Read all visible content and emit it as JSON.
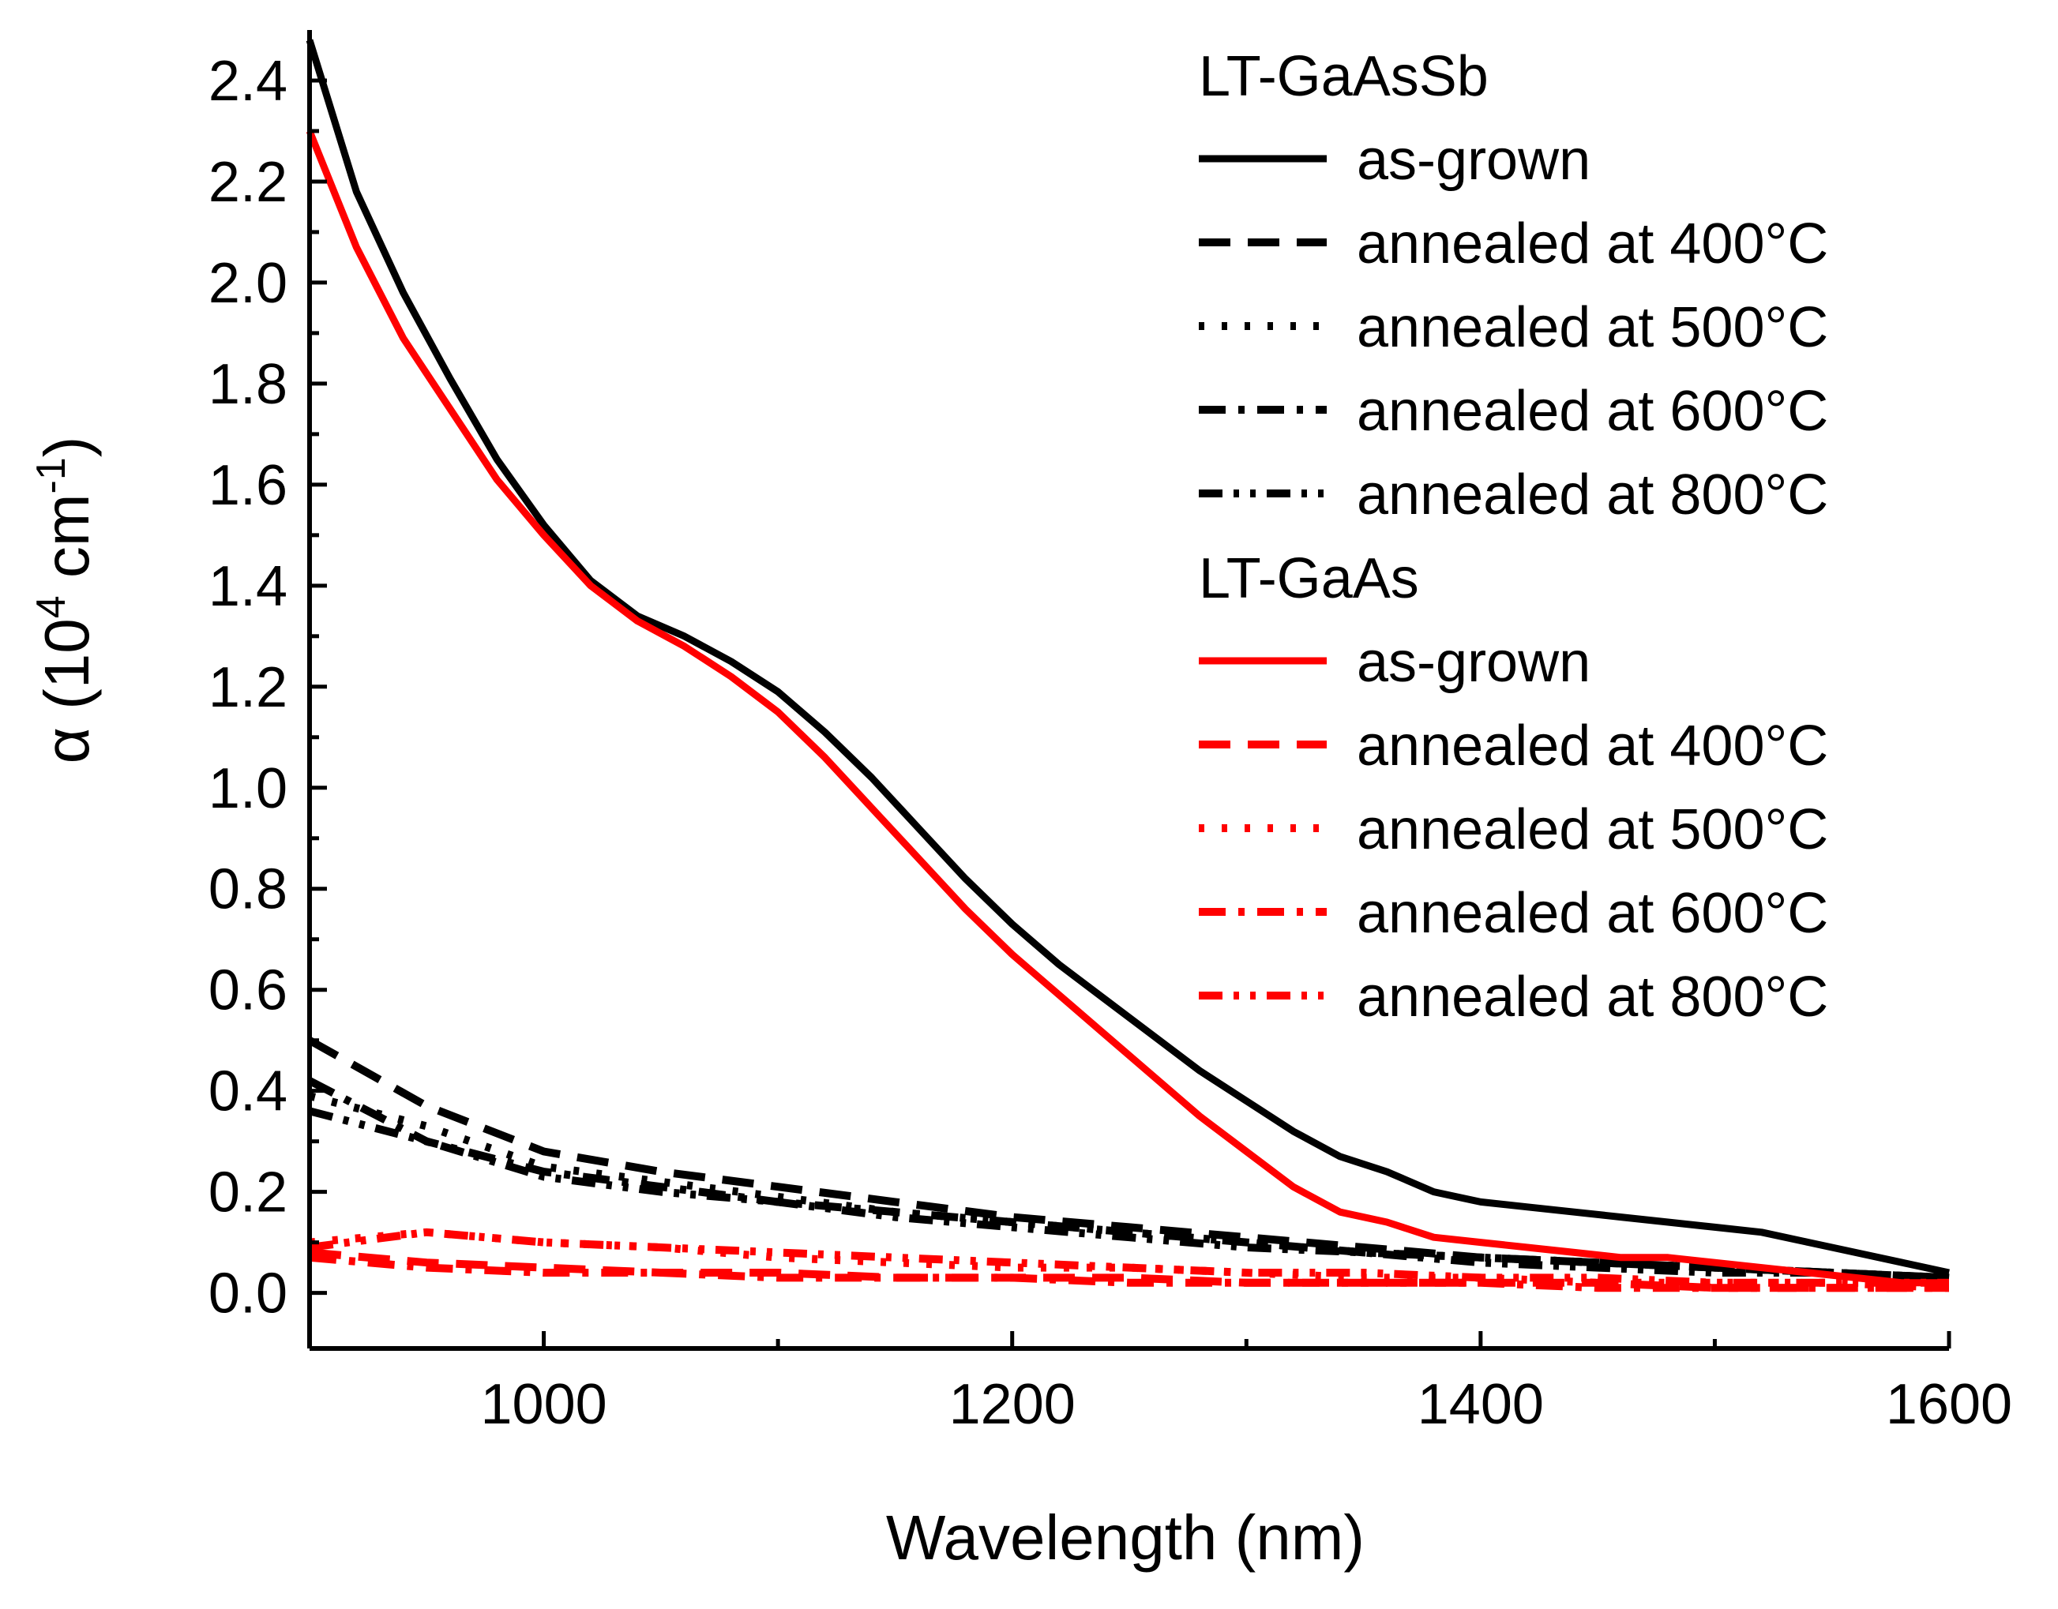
{
  "chart_data": {
    "type": "line",
    "xlabel": "Wavelength (nm)",
    "ylabel": {
      "prefix": "α (10",
      "exp1": "4",
      "mid": " cm",
      "exp2": "-1",
      "suffix": ")"
    },
    "xlim": [
      900,
      1600
    ],
    "ylim": [
      -0.11,
      2.5
    ],
    "x_ticks": [
      1000,
      1200,
      1400,
      1600
    ],
    "x_tick_labels": [
      "1000",
      "1200",
      "1400",
      "1600"
    ],
    "y_ticks": [
      0.0,
      0.2,
      0.4,
      0.6,
      0.8,
      1.0,
      1.2,
      1.4,
      1.6,
      1.8,
      2.0,
      2.2,
      2.4
    ],
    "y_tick_labels": [
      "0.0",
      "0.2",
      "0.4",
      "0.6",
      "0.8",
      "1.0",
      "1.2",
      "1.4",
      "1.6",
      "1.8",
      "2.0",
      "2.2",
      "2.4"
    ],
    "grid": false,
    "legend_position": "top-right",
    "groups": [
      {
        "title": "LT-GaAsSb",
        "color": "#000000",
        "series": [
          {
            "name": "as-grown",
            "style": "solid",
            "x": [
              900,
              920,
              940,
              960,
              980,
              1000,
              1020,
              1040,
              1060,
              1080,
              1100,
              1120,
              1140,
              1160,
              1180,
              1200,
              1220,
              1240,
              1260,
              1280,
              1300,
              1320,
              1340,
              1360,
              1380,
              1400,
              1420,
              1440,
              1460,
              1480,
              1500,
              1520,
              1540,
              1560,
              1580,
              1600
            ],
            "y": [
              2.48,
              2.18,
              1.98,
              1.81,
              1.65,
              1.52,
              1.41,
              1.34,
              1.3,
              1.25,
              1.19,
              1.11,
              1.02,
              0.92,
              0.82,
              0.73,
              0.65,
              0.58,
              0.51,
              0.44,
              0.38,
              0.32,
              0.27,
              0.24,
              0.2,
              0.18,
              0.17,
              0.16,
              0.15,
              0.14,
              0.13,
              0.12,
              0.1,
              0.08,
              0.06,
              0.04
            ]
          },
          {
            "name": "annealed at 400°C",
            "style": "dash",
            "x": [
              900,
              950,
              1000,
              1050,
              1100,
              1150,
              1200,
              1250,
              1300,
              1350,
              1400,
              1450,
              1500,
              1550,
              1600
            ],
            "y": [
              0.5,
              0.37,
              0.28,
              0.24,
              0.21,
              0.18,
              0.15,
              0.13,
              0.11,
              0.09,
              0.07,
              0.06,
              0.05,
              0.04,
              0.03
            ]
          },
          {
            "name": "annealed at 500°C",
            "style": "dot",
            "x": [
              900,
              950,
              1000,
              1050,
              1100,
              1150,
              1200,
              1250,
              1300,
              1350,
              1400,
              1450,
              1500,
              1550,
              1600
            ],
            "y": [
              0.39,
              0.33,
              0.25,
              0.22,
              0.19,
              0.16,
              0.14,
              0.12,
              0.1,
              0.08,
              0.07,
              0.06,
              0.05,
              0.04,
              0.03
            ]
          },
          {
            "name": "annealed at 600°C",
            "style": "dashdot",
            "x": [
              900,
              950,
              1000,
              1050,
              1100,
              1150,
              1200,
              1250,
              1300,
              1350,
              1400,
              1450,
              1500,
              1550,
              1600
            ],
            "y": [
              0.42,
              0.3,
              0.24,
              0.21,
              0.18,
              0.16,
              0.14,
              0.12,
              0.1,
              0.08,
              0.07,
              0.06,
              0.05,
              0.04,
              0.03
            ]
          },
          {
            "name": "annealed at 800°C",
            "style": "dashdotdot",
            "x": [
              900,
              950,
              1000,
              1050,
              1100,
              1150,
              1200,
              1250,
              1300,
              1350,
              1400,
              1450,
              1500,
              1550,
              1600
            ],
            "y": [
              0.36,
              0.3,
              0.23,
              0.2,
              0.18,
              0.15,
              0.13,
              0.11,
              0.09,
              0.08,
              0.06,
              0.05,
              0.04,
              0.04,
              0.03
            ]
          }
        ]
      },
      {
        "title": "LT-GaAs",
        "color": "#ff0000",
        "series": [
          {
            "name": "as-grown",
            "style": "solid",
            "x": [
              900,
              920,
              940,
              960,
              980,
              1000,
              1020,
              1040,
              1060,
              1080,
              1100,
              1120,
              1140,
              1160,
              1180,
              1200,
              1220,
              1240,
              1260,
              1280,
              1300,
              1320,
              1340,
              1360,
              1380,
              1400,
              1420,
              1440,
              1460,
              1480,
              1500,
              1520,
              1540,
              1560,
              1580,
              1600
            ],
            "y": [
              2.3,
              2.07,
              1.89,
              1.75,
              1.61,
              1.5,
              1.4,
              1.33,
              1.28,
              1.22,
              1.15,
              1.06,
              0.96,
              0.86,
              0.76,
              0.67,
              0.59,
              0.51,
              0.43,
              0.35,
              0.28,
              0.21,
              0.16,
              0.14,
              0.11,
              0.1,
              0.09,
              0.08,
              0.07,
              0.07,
              0.06,
              0.05,
              0.04,
              0.03,
              0.02,
              0.02
            ]
          },
          {
            "name": "annealed at 400°C",
            "style": "dash",
            "x": [
              900,
              950,
              1000,
              1050,
              1100,
              1150,
              1200,
              1250,
              1300,
              1350,
              1400,
              1450,
              1500,
              1550,
              1600
            ],
            "y": [
              0.08,
              0.06,
              0.05,
              0.04,
              0.04,
              0.03,
              0.03,
              0.03,
              0.02,
              0.02,
              0.02,
              0.02,
              0.01,
              0.01,
              0.01
            ]
          },
          {
            "name": "annealed at 500°C",
            "style": "dot",
            "x": [
              900,
              950,
              1000,
              1050,
              1100,
              1150,
              1200,
              1250,
              1300,
              1350,
              1400,
              1450,
              1500,
              1550,
              1600
            ],
            "y": [
              0.1,
              0.12,
              0.1,
              0.09,
              0.07,
              0.06,
              0.05,
              0.05,
              0.04,
              0.03,
              0.03,
              0.02,
              0.02,
              0.02,
              0.01
            ]
          },
          {
            "name": "annealed at 600°C",
            "style": "dashdot",
            "x": [
              900,
              950,
              1000,
              1050,
              1100,
              1150,
              1200,
              1250,
              1300,
              1350,
              1400,
              1450,
              1500,
              1550,
              1600
            ],
            "y": [
              0.07,
              0.05,
              0.04,
              0.04,
              0.03,
              0.03,
              0.03,
              0.02,
              0.02,
              0.02,
              0.02,
              0.01,
              0.01,
              0.01,
              0.01
            ]
          },
          {
            "name": "annealed at 800°C",
            "style": "dashdotdot",
            "x": [
              900,
              950,
              1000,
              1050,
              1100,
              1150,
              1200,
              1250,
              1300,
              1350,
              1400,
              1450,
              1500,
              1550,
              1600
            ],
            "y": [
              0.09,
              0.12,
              0.1,
              0.09,
              0.08,
              0.07,
              0.06,
              0.05,
              0.04,
              0.04,
              0.03,
              0.03,
              0.02,
              0.02,
              0.02
            ]
          }
        ]
      }
    ]
  }
}
